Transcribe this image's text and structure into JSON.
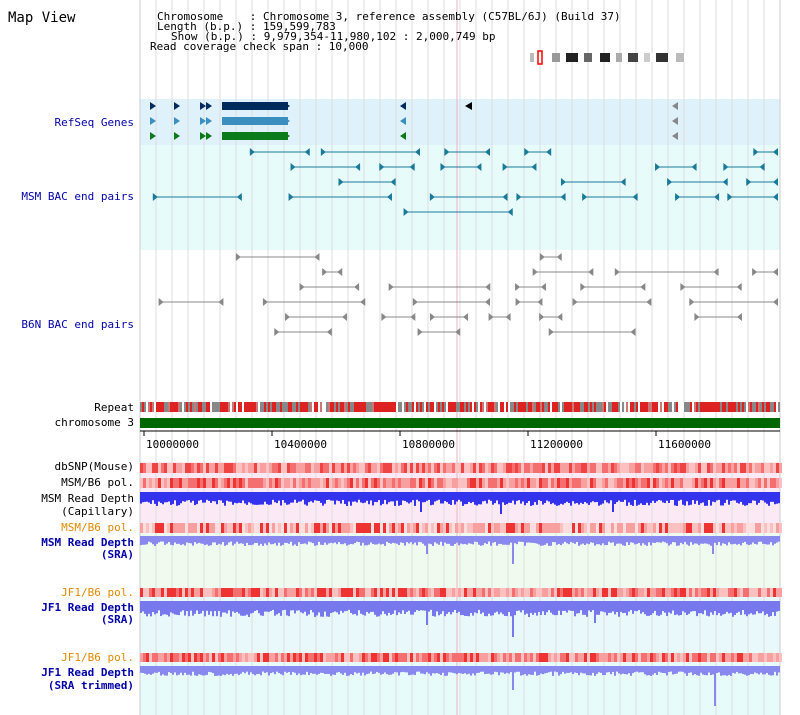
{
  "title": "Map View",
  "info": {
    "chromosome": "Chromosome    : Chromosome 3, reference assembly (C57BL/6J) (Build 37)",
    "length": "Length (b.p.) : 159,599,783",
    "show": "Show (b.p.) : 9,979,354-11,980,102 : 2,000,749 bp",
    "coverage": "Read coverage check span : 10,000"
  },
  "tracks": {
    "refseq": "RefSeq Genes",
    "msm_bac": "MSM BAC end pairs",
    "b6n_bac": "B6N BAC end pairs",
    "repeat": "Repeat",
    "chromosome": "chromosome 3",
    "dbsnp": "dbSNP(Mouse)",
    "msm_b6_pol_1": "MSM/B6 pol.",
    "msm_depth_cap_1": "MSM Read Depth",
    "msm_depth_cap_2": "(Capillary)",
    "msm_b6_pol_2": "MSM/B6 pol.",
    "msm_depth_sra_1": "MSM Read Depth",
    "msm_depth_sra_2": "(SRA)",
    "jf1_b6_pol_1": "JF1/B6 pol.",
    "jf1_depth_sra_1": "JF1 Read Depth",
    "jf1_depth_sra_2": "(SRA)",
    "jf1_b6_pol_2": "JF1/B6 pol.",
    "jf1_depth_trim_1": "JF1 Read Depth",
    "jf1_depth_trim_2": "(SRA trimmed)"
  },
  "axis_ticks": [
    "10000000",
    "10400000",
    "10800000",
    "11200000",
    "11600000"
  ],
  "colors": {
    "refseq_bg": "#dff2fb",
    "msm_bac_bg": "#e8fbfb",
    "msm_bac_feature": "#1a7a9a",
    "b6n_feature": "#888888",
    "chromosome_bar": "#006600",
    "depth_blue": "#3333ff",
    "depth_light": "#7777ee",
    "pol_red": "#ee3333",
    "pol_pink": "#f8a0a0"
  }
}
